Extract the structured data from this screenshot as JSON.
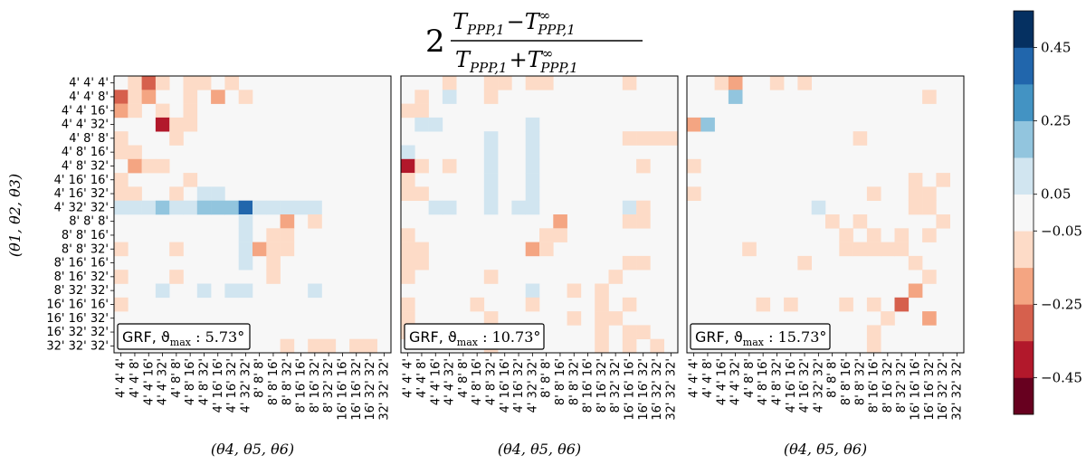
{
  "chart_data": {
    "type": "heatmap",
    "title": "2 (T_{PPP,1} − T^∞_{PPP,1}) / (T_{PPP,1} + T^∞_{PPP,1})",
    "title_parts": {
      "factor": "2",
      "numerator": "T",
      "numerator_sub": "PPP,1",
      "minus": "−T",
      "inf": "∞",
      "denominator": "T",
      "plus": "+T"
    },
    "ylabel": "(θ1, θ2, θ3)",
    "xlabel": "(θ4, θ5, θ6)",
    "triplet_labels": [
      "4' 4' 4'",
      "4' 4' 8'",
      "4' 4' 16'",
      "4' 4' 32'",
      "4' 8' 8'",
      "4' 8' 16'",
      "4' 8' 32'",
      "4' 16' 16'",
      "4' 16' 32'",
      "4' 32' 32'",
      "8' 8' 8'",
      "8' 8' 16'",
      "8' 8' 32'",
      "8' 16' 16'",
      "8' 16' 32'",
      "8' 32' 32'",
      "16' 16' 16'",
      "16' 16' 32'",
      "16' 32' 32'",
      "32' 32' 32'"
    ],
    "panels": [
      {
        "annotation_prefix": "GRF, ϑ",
        "annotation_sub": "max",
        "annotation_value": " : 5.73°",
        "cells": [
          [
            0,
            1,
            -0.15
          ],
          [
            0,
            2,
            -0.3
          ],
          [
            0,
            3,
            -0.15
          ],
          [
            0,
            5,
            -0.1
          ],
          [
            0,
            6,
            -0.15
          ],
          [
            0,
            8,
            -0.1
          ],
          [
            1,
            0,
            -0.3
          ],
          [
            1,
            1,
            -0.15
          ],
          [
            1,
            2,
            -0.2
          ],
          [
            1,
            5,
            -0.15
          ],
          [
            1,
            7,
            -0.2
          ],
          [
            1,
            9,
            -0.1
          ],
          [
            2,
            0,
            -0.2
          ],
          [
            2,
            1,
            -0.15
          ],
          [
            2,
            3,
            -0.1
          ],
          [
            2,
            5,
            -0.1
          ],
          [
            3,
            3,
            -0.45
          ],
          [
            3,
            4,
            -0.1
          ],
          [
            3,
            5,
            -0.1
          ],
          [
            4,
            0,
            -0.15
          ],
          [
            4,
            4,
            -0.1
          ],
          [
            5,
            0,
            -0.1
          ],
          [
            5,
            1,
            -0.1
          ],
          [
            6,
            1,
            -0.2
          ],
          [
            6,
            2,
            -0.1
          ],
          [
            6,
            3,
            -0.1
          ],
          [
            7,
            0,
            -0.1
          ],
          [
            7,
            5,
            -0.1
          ],
          [
            8,
            0,
            -0.1
          ],
          [
            8,
            1,
            -0.1
          ],
          [
            8,
            4,
            -0.1
          ],
          [
            8,
            6,
            0.1
          ],
          [
            8,
            7,
            0.1
          ],
          [
            9,
            0,
            0.1
          ],
          [
            9,
            1,
            0.1
          ],
          [
            9,
            2,
            0.1
          ],
          [
            9,
            3,
            0.2
          ],
          [
            9,
            4,
            0.1
          ],
          [
            9,
            5,
            0.1
          ],
          [
            9,
            6,
            0.2
          ],
          [
            9,
            7,
            0.2
          ],
          [
            9,
            8,
            0.2
          ],
          [
            9,
            9,
            0.4
          ],
          [
            9,
            10,
            0.1
          ],
          [
            9,
            11,
            0.1
          ],
          [
            9,
            12,
            0.1
          ],
          [
            9,
            13,
            0.1
          ],
          [
            9,
            14,
            0.1
          ],
          [
            10,
            9,
            0.1
          ],
          [
            10,
            12,
            -0.2
          ],
          [
            10,
            14,
            -0.1
          ],
          [
            11,
            9,
            0.1
          ],
          [
            11,
            11,
            -0.1
          ],
          [
            11,
            12,
            -0.1
          ],
          [
            12,
            0,
            -0.1
          ],
          [
            12,
            4,
            -0.1
          ],
          [
            12,
            9,
            0.1
          ],
          [
            12,
            10,
            -0.2
          ],
          [
            12,
            11,
            -0.1
          ],
          [
            12,
            12,
            -0.1
          ],
          [
            13,
            9,
            0.1
          ],
          [
            13,
            11,
            -0.1
          ],
          [
            14,
            0,
            -0.1
          ],
          [
            14,
            4,
            -0.1
          ],
          [
            14,
            11,
            -0.1
          ],
          [
            15,
            3,
            0.1
          ],
          [
            15,
            6,
            0.1
          ],
          [
            15,
            8,
            0.1
          ],
          [
            15,
            9,
            0.1
          ],
          [
            15,
            14,
            0.1
          ],
          [
            16,
            0,
            -0.1
          ],
          [
            19,
            12,
            -0.1
          ],
          [
            19,
            14,
            -0.1
          ],
          [
            19,
            15,
            -0.1
          ],
          [
            19,
            17,
            -0.1
          ],
          [
            19,
            18,
            -0.1
          ]
        ]
      },
      {
        "annotation_prefix": "GRF, ϑ",
        "annotation_sub": "max",
        "annotation_value": " : 10.73°",
        "cells": [
          [
            0,
            3,
            -0.1
          ],
          [
            0,
            6,
            -0.1
          ],
          [
            0,
            7,
            -0.1
          ],
          [
            0,
            9,
            -0.1
          ],
          [
            0,
            10,
            -0.1
          ],
          [
            0,
            16,
            -0.1
          ],
          [
            1,
            1,
            -0.1
          ],
          [
            1,
            3,
            0.1
          ],
          [
            1,
            6,
            -0.1
          ],
          [
            2,
            0,
            -0.1
          ],
          [
            2,
            1,
            -0.1
          ],
          [
            3,
            1,
            0.1
          ],
          [
            3,
            2,
            0.1
          ],
          [
            3,
            9,
            0.1
          ],
          [
            4,
            6,
            0.1
          ],
          [
            4,
            9,
            0.1
          ],
          [
            4,
            16,
            -0.1
          ],
          [
            4,
            17,
            -0.1
          ],
          [
            4,
            18,
            -0.1
          ],
          [
            4,
            19,
            -0.1
          ],
          [
            5,
            0,
            0.1
          ],
          [
            5,
            6,
            0.1
          ],
          [
            5,
            9,
            0.1
          ],
          [
            6,
            0,
            -0.45
          ],
          [
            6,
            1,
            -0.1
          ],
          [
            6,
            3,
            -0.1
          ],
          [
            6,
            6,
            0.1
          ],
          [
            6,
            9,
            0.1
          ],
          [
            6,
            17,
            -0.1
          ],
          [
            7,
            0,
            -0.1
          ],
          [
            7,
            6,
            0.1
          ],
          [
            7,
            9,
            0.1
          ],
          [
            8,
            0,
            -0.1
          ],
          [
            8,
            1,
            -0.1
          ],
          [
            8,
            6,
            0.1
          ],
          [
            8,
            9,
            0.1
          ],
          [
            9,
            2,
            0.1
          ],
          [
            9,
            3,
            0.1
          ],
          [
            9,
            6,
            0.1
          ],
          [
            9,
            8,
            0.1
          ],
          [
            9,
            9,
            0.1
          ],
          [
            9,
            16,
            0.1
          ],
          [
            9,
            17,
            -0.1
          ],
          [
            10,
            11,
            -0.2
          ],
          [
            10,
            16,
            -0.1
          ],
          [
            10,
            17,
            -0.1
          ],
          [
            11,
            0,
            -0.1
          ],
          [
            11,
            10,
            -0.1
          ],
          [
            11,
            11,
            -0.1
          ],
          [
            12,
            0,
            -0.1
          ],
          [
            12,
            1,
            -0.1
          ],
          [
            12,
            9,
            -0.25
          ],
          [
            12,
            10,
            -0.1
          ],
          [
            13,
            0,
            -0.1
          ],
          [
            13,
            1,
            -0.1
          ],
          [
            13,
            16,
            -0.1
          ],
          [
            13,
            17,
            -0.1
          ],
          [
            14,
            0,
            -0.1
          ],
          [
            14,
            6,
            -0.1
          ],
          [
            14,
            15,
            -0.1
          ],
          [
            15,
            9,
            0.1
          ],
          [
            15,
            12,
            -0.1
          ],
          [
            15,
            14,
            -0.1
          ],
          [
            16,
            0,
            -0.1
          ],
          [
            16,
            5,
            -0.1
          ],
          [
            16,
            9,
            -0.1
          ],
          [
            16,
            14,
            -0.1
          ],
          [
            16,
            16,
            -0.1
          ],
          [
            17,
            0,
            -0.1
          ],
          [
            17,
            6,
            -0.1
          ],
          [
            17,
            12,
            -0.1
          ],
          [
            17,
            14,
            -0.1
          ],
          [
            17,
            15,
            -0.1
          ],
          [
            18,
            0,
            -0.1
          ],
          [
            18,
            6,
            -0.1
          ],
          [
            18,
            14,
            -0.1
          ],
          [
            18,
            16,
            -0.1
          ],
          [
            18,
            17,
            -0.1
          ],
          [
            19,
            6,
            -0.1
          ],
          [
            19,
            14,
            -0.1
          ],
          [
            19,
            16,
            -0.1
          ],
          [
            19,
            18,
            -0.1
          ]
        ]
      },
      {
        "annotation_prefix": "GRF, ϑ",
        "annotation_sub": "max",
        "annotation_value": " : 15.73°",
        "cells": [
          [
            0,
            2,
            -0.1
          ],
          [
            0,
            3,
            -0.2
          ],
          [
            0,
            6,
            -0.1
          ],
          [
            0,
            8,
            -0.1
          ],
          [
            1,
            3,
            0.2
          ],
          [
            1,
            17,
            -0.1
          ],
          [
            3,
            0,
            -0.2
          ],
          [
            3,
            1,
            0.2
          ],
          [
            4,
            12,
            -0.1
          ],
          [
            6,
            0,
            -0.1
          ],
          [
            7,
            16,
            -0.1
          ],
          [
            7,
            18,
            -0.1
          ],
          [
            8,
            0,
            -0.1
          ],
          [
            8,
            13,
            -0.1
          ],
          [
            8,
            16,
            -0.1
          ],
          [
            8,
            17,
            -0.1
          ],
          [
            9,
            9,
            0.1
          ],
          [
            9,
            16,
            -0.1
          ],
          [
            9,
            17,
            -0.1
          ],
          [
            10,
            10,
            -0.1
          ],
          [
            10,
            12,
            -0.1
          ],
          [
            10,
            18,
            -0.1
          ],
          [
            11,
            11,
            -0.1
          ],
          [
            11,
            13,
            -0.1
          ],
          [
            11,
            15,
            -0.1
          ],
          [
            11,
            17,
            -0.1
          ],
          [
            12,
            4,
            -0.1
          ],
          [
            12,
            11,
            -0.1
          ],
          [
            12,
            12,
            -0.1
          ],
          [
            12,
            13,
            -0.1
          ],
          [
            12,
            14,
            -0.1
          ],
          [
            12,
            15,
            -0.1
          ],
          [
            13,
            8,
            -0.1
          ],
          [
            13,
            16,
            -0.1
          ],
          [
            14,
            17,
            -0.1
          ],
          [
            15,
            16,
            -0.25
          ],
          [
            16,
            5,
            -0.1
          ],
          [
            16,
            7,
            -0.1
          ],
          [
            16,
            11,
            -0.1
          ],
          [
            16,
            13,
            -0.1
          ],
          [
            16,
            15,
            -0.3
          ],
          [
            17,
            14,
            -0.1
          ],
          [
            17,
            17,
            -0.25
          ],
          [
            18,
            13,
            -0.1
          ],
          [
            19,
            13,
            -0.1
          ]
        ]
      }
    ],
    "colorbar": {
      "range": [
        -0.55,
        0.55
      ],
      "bounds": [
        -0.55,
        -0.45,
        -0.35,
        -0.25,
        -0.15,
        -0.05,
        0.05,
        0.15,
        0.25,
        0.35,
        0.45,
        0.55
      ],
      "colors": [
        "#67001f",
        "#b2182b",
        "#d6604d",
        "#f4a582",
        "#fddbc7",
        "#f7f7f7",
        "#d1e5f0",
        "#92c5de",
        "#4393c3",
        "#2166ac",
        "#053061"
      ],
      "tick_values": [
        -0.45,
        -0.25,
        -0.05,
        0.05,
        0.25,
        0.45
      ],
      "tick_labels": [
        "−0.45",
        "−0.25",
        "−0.05",
        "0.05",
        "0.25",
        "0.45"
      ]
    }
  }
}
